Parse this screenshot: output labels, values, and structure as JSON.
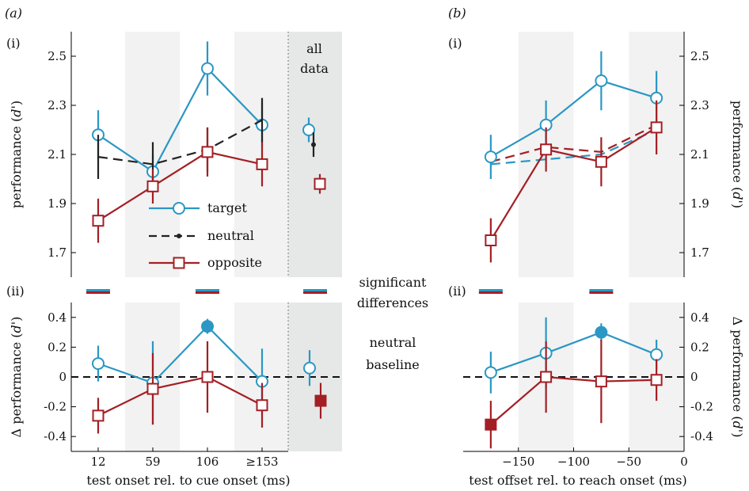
{
  "panels": {
    "a": "(a)",
    "b": "(b)",
    "i": "(i)",
    "ii": "(ii)"
  },
  "middle_text": {
    "sig_line1": "significant",
    "sig_line2": "differences",
    "base_line1": "neutral",
    "base_line2": "baseline"
  },
  "legend": [
    {
      "name": "target",
      "marker": "circle-open",
      "style": "solid"
    },
    {
      "name": "neutral",
      "marker": "dot",
      "style": "dashed"
    },
    {
      "name": "opposite",
      "marker": "square-open",
      "style": "solid"
    }
  ],
  "colors": {
    "target": "#2a97c4",
    "neutral": "#222222",
    "opposite": "#a31f24",
    "shade_light": "#f2f2f2",
    "shade_dark": "#e6e8e8"
  },
  "chart_data": [
    {
      "id": "a-i",
      "type": "line",
      "ylabel_main": "performance (",
      "ylabel_var": "d'",
      "ylabel_end": ")",
      "ylim": [
        1.6,
        2.6
      ],
      "yticks": [
        "1.7",
        "1.9",
        "2.1",
        "2.3",
        "2.5"
      ],
      "categories": [
        "12",
        "59",
        "106",
        "≥153"
      ],
      "extra_label": [
        "all",
        "data"
      ],
      "series": [
        {
          "name": "target",
          "values": [
            2.18,
            2.03,
            2.45,
            2.22
          ],
          "err": [
            0.1,
            0.07,
            0.11,
            0.09
          ]
        },
        {
          "name": "neutral",
          "values": [
            2.09,
            2.06,
            2.12,
            2.24
          ],
          "err": [
            0.09,
            0.09,
            0.09,
            0.09
          ]
        },
        {
          "name": "opposite",
          "values": [
            1.83,
            1.97,
            2.11,
            2.06
          ],
          "err": [
            0.09,
            0.07,
            0.1,
            0.09
          ]
        }
      ],
      "all_data": {
        "target": [
          2.2,
          0.05
        ],
        "neutral": [
          2.14,
          0.05
        ],
        "opposite": [
          1.98,
          0.04
        ]
      }
    },
    {
      "id": "a-ii",
      "type": "line",
      "ylabel_main": "Δ performance (",
      "ylabel_var": "d'",
      "ylabel_end": ")",
      "ylim": [
        -0.5,
        0.5
      ],
      "yticks": [
        "-0.4",
        "-0.2",
        "0",
        "0.2",
        "0.4"
      ],
      "xlabel": "test onset rel. to cue onset (ms)",
      "categories": [
        "12",
        "59",
        "106",
        "≥153"
      ],
      "series": [
        {
          "name": "target",
          "values": [
            0.09,
            -0.04,
            0.34,
            -0.03
          ],
          "err": [
            0.12,
            0.28,
            0.05,
            0.22
          ],
          "filled": [
            false,
            false,
            true,
            false
          ]
        },
        {
          "name": "opposite",
          "values": [
            -0.26,
            -0.08,
            0.0,
            -0.19
          ],
          "err": [
            0.12,
            0.24,
            0.24,
            0.15
          ],
          "filled": [
            false,
            false,
            false,
            false
          ]
        }
      ],
      "all_data": {
        "target": [
          0.06,
          0.12,
          false
        ],
        "opposite": [
          -0.16,
          0.12,
          true
        ]
      }
    },
    {
      "id": "b-i",
      "type": "line",
      "ylabel_main": "performance (",
      "ylabel_var": "d'",
      "ylabel_end": ")",
      "ylim": [
        1.6,
        2.6
      ],
      "yticks": [
        "1.7",
        "1.9",
        "2.1",
        "2.3",
        "2.5"
      ],
      "x": [
        -175,
        -125,
        -75,
        -25
      ],
      "series": [
        {
          "name": "target",
          "values": [
            2.09,
            2.22,
            2.4,
            2.33
          ],
          "err": [
            0.09,
            0.1,
            0.12,
            0.11
          ]
        },
        {
          "name": "neutral",
          "values": [
            2.06,
            2.08,
            2.1,
            2.2
          ],
          "err": [
            0.06,
            0.06,
            0.06,
            0.06
          ]
        },
        {
          "name": "opposite",
          "values": [
            1.75,
            2.12,
            2.07,
            2.21
          ],
          "err": [
            0.09,
            0.09,
            0.1,
            0.11
          ]
        }
      ],
      "neutral_opposite_dash": [
        2.07,
        2.13,
        2.11,
        2.22
      ]
    },
    {
      "id": "b-ii",
      "type": "line",
      "ylabel_main": "Δ performance (",
      "ylabel_var": "d'",
      "ylabel_end": ")",
      "ylim": [
        -0.5,
        0.5
      ],
      "yticks": [
        "-0.4",
        "-0.2",
        "0",
        "0.2",
        "0.4"
      ],
      "xlim": [
        -200,
        0
      ],
      "xticks": [
        "−150",
        "−100",
        "−50",
        "0"
      ],
      "xlabel": "test offset rel. to reach onset (ms)",
      "x": [
        -175,
        -125,
        -75,
        -25
      ],
      "series": [
        {
          "name": "target",
          "values": [
            0.03,
            0.16,
            0.3,
            0.15
          ],
          "err": [
            0.14,
            0.24,
            0.06,
            0.1
          ],
          "filled": [
            false,
            false,
            true,
            false
          ]
        },
        {
          "name": "opposite",
          "values": [
            -0.32,
            0.0,
            -0.03,
            -0.02
          ],
          "err": [
            0.16,
            0.24,
            0.28,
            0.14
          ],
          "filled": [
            true,
            false,
            false,
            false
          ]
        }
      ]
    }
  ]
}
